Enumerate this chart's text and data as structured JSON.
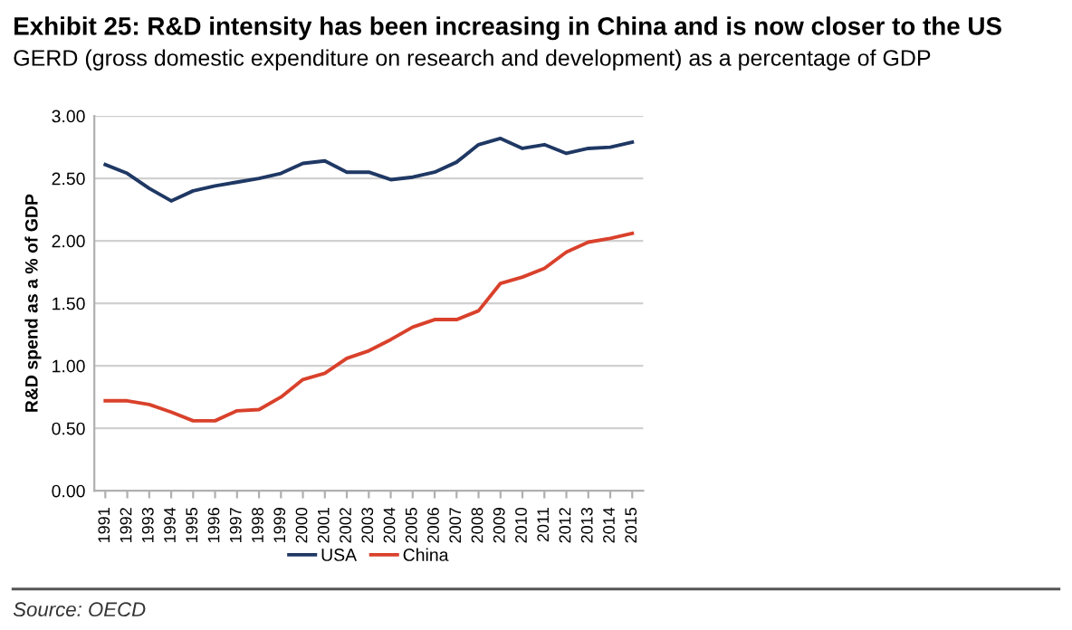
{
  "chart_data": {
    "type": "line",
    "title": "Exhibit 25: R&D intensity has been increasing in China and is now closer to the US",
    "subtitle": "GERD (gross domestic expenditure on research and development) as a percentage of GDP",
    "ylabel": "R&D spend as a % of GDP",
    "categories": [
      "1991",
      "1992",
      "1993",
      "1994",
      "1995",
      "1996",
      "1997",
      "1998",
      "1999",
      "2000",
      "2001",
      "2002",
      "2003",
      "2004",
      "2005",
      "2006",
      "2007",
      "2008",
      "2009",
      "2010",
      "2011",
      "2012",
      "2013",
      "2014",
      "2015"
    ],
    "series": [
      {
        "name": "USA",
        "color": "#1f3864",
        "values": [
          2.61,
          2.54,
          2.42,
          2.32,
          2.4,
          2.44,
          2.47,
          2.5,
          2.54,
          2.62,
          2.64,
          2.55,
          2.55,
          2.49,
          2.51,
          2.55,
          2.63,
          2.77,
          2.82,
          2.74,
          2.77,
          2.7,
          2.74,
          2.75,
          2.79
        ]
      },
      {
        "name": "China",
        "color": "#d9412b",
        "values": [
          0.72,
          0.72,
          0.69,
          0.63,
          0.56,
          0.56,
          0.64,
          0.65,
          0.75,
          0.89,
          0.94,
          1.06,
          1.12,
          1.21,
          1.31,
          1.37,
          1.37,
          1.44,
          1.66,
          1.71,
          1.78,
          1.91,
          1.99,
          2.02,
          2.06
        ]
      }
    ],
    "ylim": [
      0,
      3
    ],
    "yticks": [
      {
        "value": 0,
        "label": "0.00"
      },
      {
        "value": 0.5,
        "label": "0.50"
      },
      {
        "value": 1,
        "label": "1.00"
      },
      {
        "value": 1.5,
        "label": "1.50"
      },
      {
        "value": 2,
        "label": "2.00"
      },
      {
        "value": 2.5,
        "label": "2.50"
      },
      {
        "value": 3,
        "label": "3.00"
      }
    ],
    "grid": "y",
    "legend": "bottom",
    "marker": "none",
    "line_style": "solid",
    "annotations": [
      "Source: OECD"
    ]
  }
}
